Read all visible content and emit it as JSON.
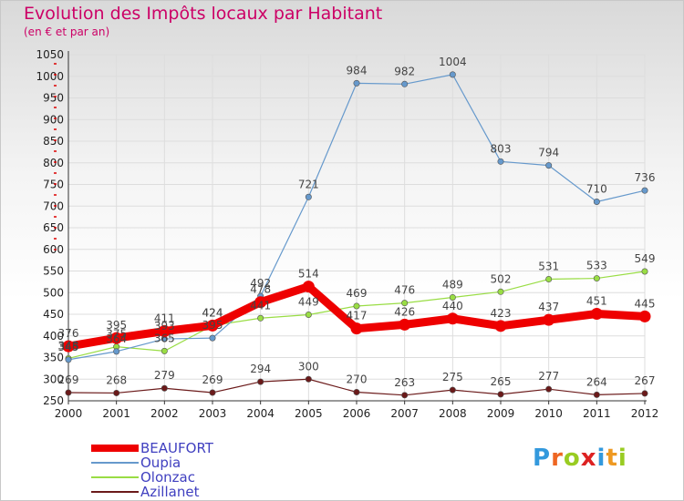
{
  "title": "Evolution des Impôts locaux par Habitant",
  "subtitle": "(en € et par an)",
  "logo": "Proxiti",
  "chart_data": {
    "type": "line",
    "x": [
      "2000",
      "2001",
      "2002",
      "2003",
      "2004",
      "2005",
      "2006",
      "2007",
      "2008",
      "2009",
      "2010",
      "2011",
      "2012"
    ],
    "ylim": [
      250,
      1050
    ],
    "yticks": [
      250,
      300,
      350,
      400,
      450,
      500,
      550,
      600,
      650,
      700,
      750,
      800,
      850,
      900,
      950,
      1000,
      1050
    ],
    "grid": true,
    "legend_position": "bottom-left",
    "series": [
      {
        "name": "Azillanet",
        "color": "#6b1a1a",
        "values": [
          269,
          268,
          279,
          269,
          294,
          300,
          270,
          263,
          275,
          265,
          277,
          264,
          267
        ]
      },
      {
        "name": "Olonzac",
        "color": "#99dd44",
        "values": [
          348,
          375,
          365,
          424,
          441,
          449,
          469,
          476,
          489,
          502,
          531,
          533,
          549
        ]
      },
      {
        "name": "Oupia",
        "color": "#6699cc",
        "values": [
          345,
          364,
          393,
          395,
          492,
          721,
          984,
          982,
          1004,
          803,
          794,
          710,
          736
        ]
      },
      {
        "name": "BEAUFORT",
        "color": "#ee0000",
        "values": [
          376,
          395,
          411,
          424,
          478,
          514,
          417,
          426,
          440,
          423,
          437,
          451,
          445
        ]
      }
    ]
  }
}
